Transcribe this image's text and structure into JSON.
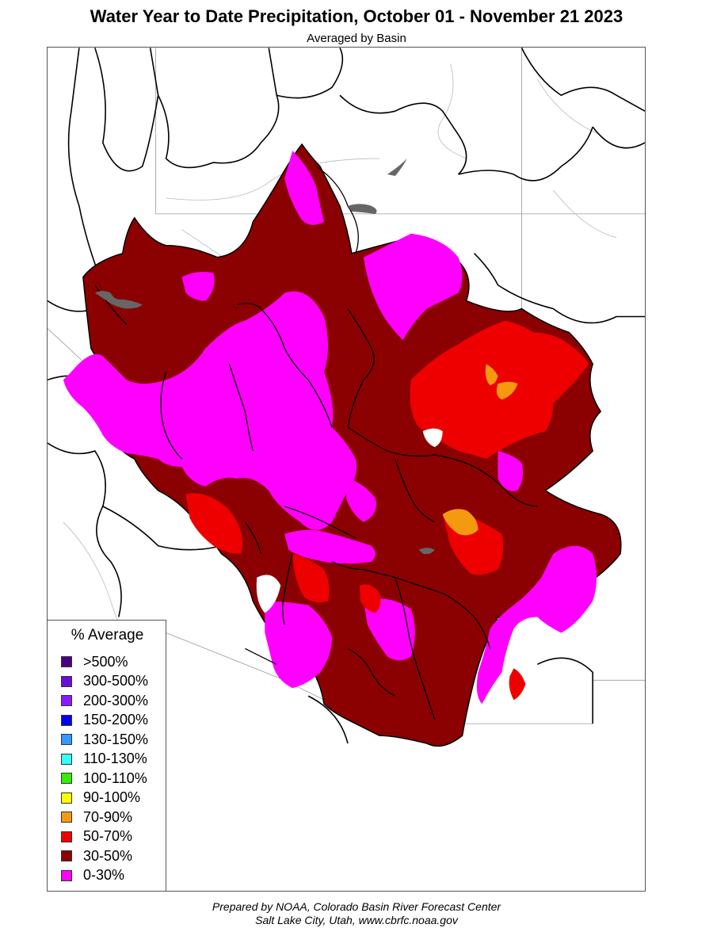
{
  "title": "Water Year to Date Precipitation, October 01  - November 21 2023",
  "subtitle": "Averaged by Basin",
  "legend": {
    "title": "% Average",
    "items": [
      {
        "label": ">500%",
        "color": "#4b0082"
      },
      {
        "label": "300-500%",
        "color": "#6a0dd9"
      },
      {
        "label": "200-300%",
        "color": "#8a1aff"
      },
      {
        "label": "150-200%",
        "color": "#0000ee"
      },
      {
        "label": "130-150%",
        "color": "#3399ff"
      },
      {
        "label": "110-130%",
        "color": "#33ffff"
      },
      {
        "label": "100-110%",
        "color": "#33ee00"
      },
      {
        "label": "90-100%",
        "color": "#ffff00"
      },
      {
        "label": "70-90%",
        "color": "#f59a0e"
      },
      {
        "label": "50-70%",
        "color": "#ee0000"
      },
      {
        "label": "30-50%",
        "color": "#8b0000"
      },
      {
        "label": "0-30%",
        "color": "#ff00ff"
      }
    ]
  },
  "colors": {
    "p0_30": "#ff00ff",
    "p30_50": "#8b0000",
    "p50_70": "#ee0000",
    "p70_90": "#f59a0e",
    "water": "#666666"
  },
  "footer": {
    "line1": "Prepared by NOAA, Colorado Basin River Forecast Center",
    "line2": "Salt Lake City, Utah, www.cbrfc.noaa.gov"
  }
}
